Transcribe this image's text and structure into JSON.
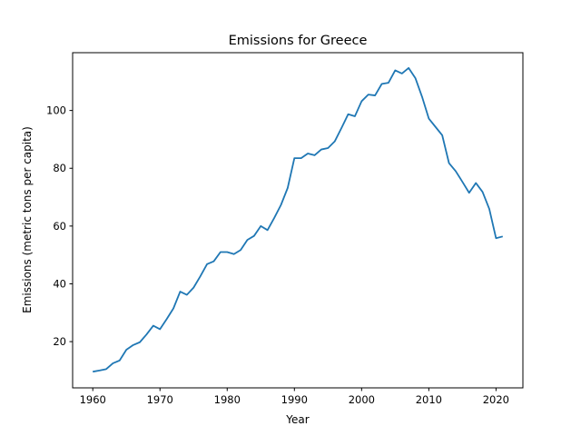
{
  "chart_data": {
    "type": "line",
    "title": "Emissions for Greece",
    "xlabel": "Year",
    "ylabel": "Emissions (metric tons per capita)",
    "xlim": [
      1957,
      2024
    ],
    "ylim": [
      4,
      120
    ],
    "xticks": [
      1960,
      1970,
      1980,
      1990,
      2000,
      2010,
      2020
    ],
    "yticks": [
      20,
      40,
      60,
      80,
      100
    ],
    "grid": false,
    "legend": "none",
    "series": [
      {
        "color": "#1f77b4",
        "x": [
          1960,
          1961,
          1962,
          1963,
          1964,
          1965,
          1966,
          1967,
          1968,
          1969,
          1970,
          1971,
          1972,
          1973,
          1974,
          1975,
          1976,
          1977,
          1978,
          1979,
          1980,
          1981,
          1982,
          1983,
          1984,
          1985,
          1986,
          1987,
          1988,
          1989,
          1990,
          1991,
          1992,
          1993,
          1994,
          1995,
          1996,
          1997,
          1998,
          1999,
          2000,
          2001,
          2002,
          2003,
          2004,
          2005,
          2006,
          2007,
          2008,
          2009,
          2010,
          2011,
          2012,
          2013,
          2014,
          2015,
          2016,
          2017,
          2018,
          2019,
          2020,
          2021
        ],
        "y": [
          9.6,
          10.0,
          10.5,
          12.5,
          13.5,
          17.2,
          18.8,
          19.8,
          22.5,
          25.5,
          24.3,
          27.8,
          31.5,
          37.3,
          36.2,
          38.7,
          42.6,
          46.8,
          47.8,
          51.0,
          51.0,
          50.3,
          51.7,
          55.2,
          56.6,
          60.0,
          58.6,
          62.8,
          67.3,
          73.2,
          83.5,
          83.5,
          85.1,
          84.5,
          86.5,
          87.0,
          89.3,
          93.9,
          98.7,
          98.0,
          103.2,
          105.5,
          105.2,
          109.2,
          109.6,
          113.9,
          112.8,
          114.7,
          111.2,
          104.7,
          97.2,
          94.3,
          91.4,
          81.8,
          79.0,
          75.3,
          71.5,
          74.9,
          71.8,
          65.9,
          55.8,
          56.4
        ]
      }
    ]
  }
}
